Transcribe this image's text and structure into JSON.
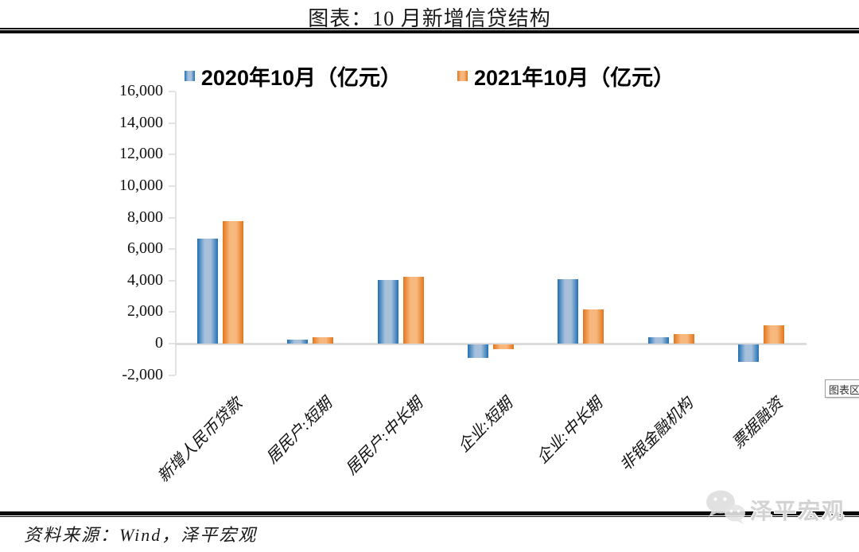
{
  "title": "图表：10 月新增信贷结构",
  "chart_data": {
    "type": "bar",
    "title": "图表：10 月新增信贷结构",
    "unit": "亿元",
    "categories": [
      "新增人民币贷款",
      "居民户:短期",
      "居民户:中长期",
      "企业:短期",
      "企业:中长期",
      "非银金融机构",
      "票据融资"
    ],
    "series": [
      {
        "name": "2020年10月（亿元）",
        "color": "#2170B5",
        "color_light": "#A6C0DB",
        "values": [
          6663,
          272,
          4059,
          -837,
          4113,
          412,
          -1124
        ]
      },
      {
        "name": "2021年10月（亿元）",
        "color": "#E4751A",
        "color_light": "#F7B87E",
        "values": [
          7752,
          426,
          4221,
          -288,
          2190,
          583,
          1160
        ]
      }
    ],
    "y_ticks": [
      16000,
      14000,
      12000,
      10000,
      8000,
      6000,
      4000,
      2000,
      0,
      -2000
    ],
    "y_tick_labels": [
      "16,000",
      "14,000",
      "12,000",
      "10,000",
      "8,000",
      "6,000",
      "4,000",
      "2,000",
      "0",
      "-2,000"
    ],
    "ylim": [
      -2000,
      16000
    ],
    "grid": false,
    "legend_position": "top-center",
    "axis_color": "#e2e2e2"
  },
  "tooltip": {
    "label": "图表区"
  },
  "source_line": "资料来源：Wind，泽平宏观",
  "watermark": {
    "brand": "泽平宏观"
  }
}
